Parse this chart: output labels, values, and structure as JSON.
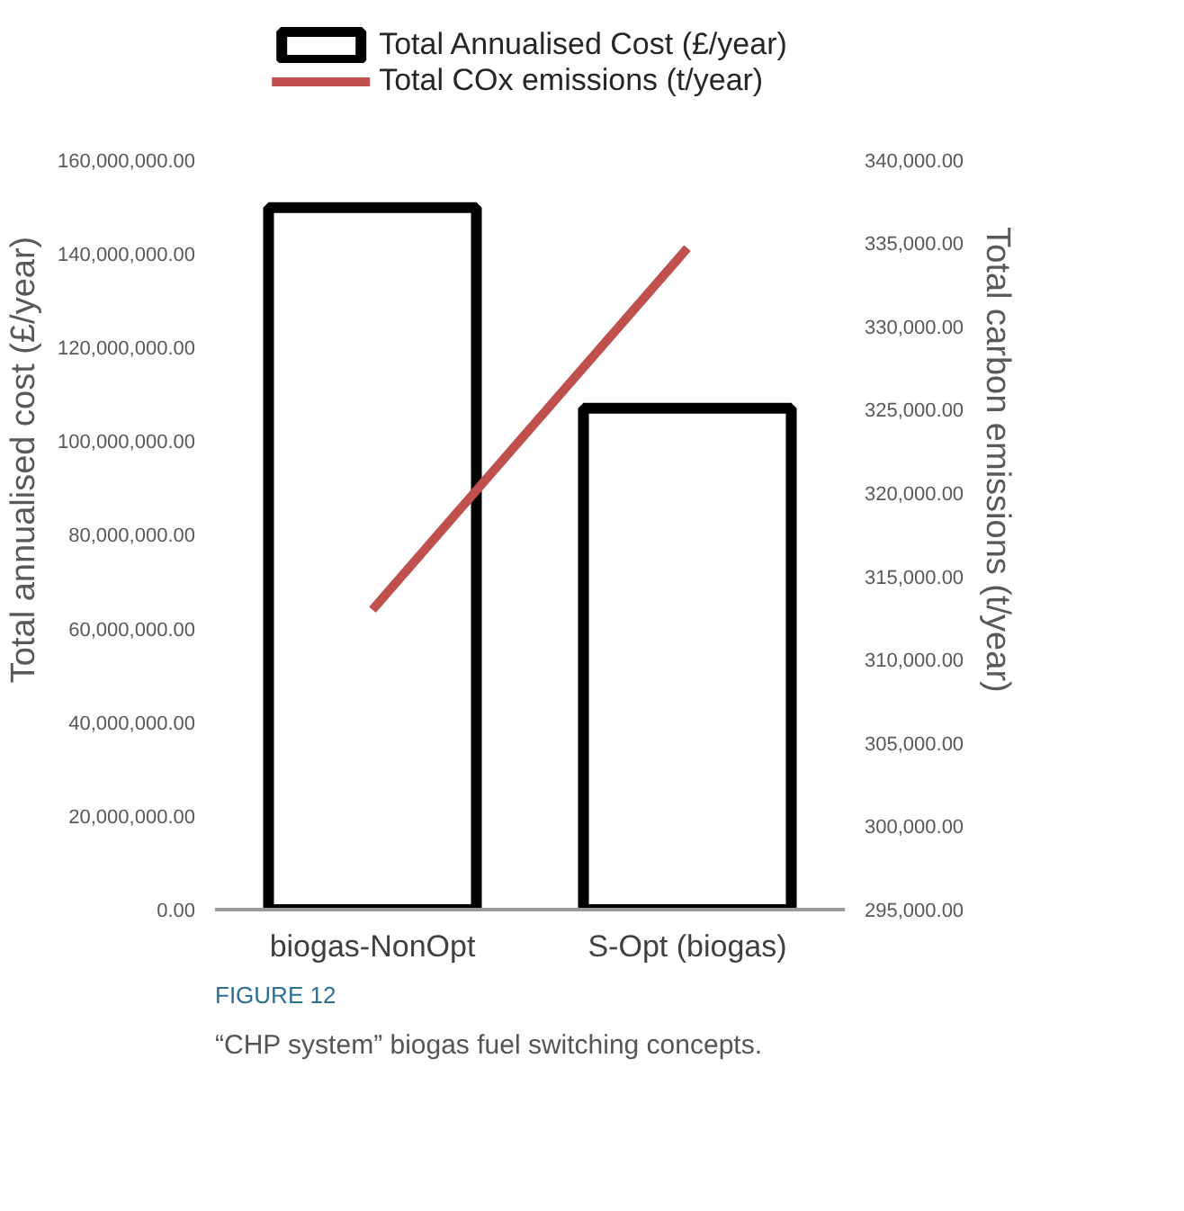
{
  "chart_data": {
    "type": "bar",
    "categories": [
      "biogas-NonOpt",
      "S-Opt (biogas)"
    ],
    "ylabel": "Total annualised cost (£/year)",
    "y2label": "Total carbon emissions (t/year)",
    "ylim": [
      0,
      160000000
    ],
    "yticks": [
      {
        "value": 0,
        "label": "0.00"
      },
      {
        "value": 20000000,
        "label": "20,000,000.00"
      },
      {
        "value": 40000000,
        "label": "40,000,000.00"
      },
      {
        "value": 60000000,
        "label": "60,000,000.00"
      },
      {
        "value": 80000000,
        "label": "80,000,000.00"
      },
      {
        "value": 100000000,
        "label": "100,000,000.00"
      },
      {
        "value": 120000000,
        "label": "120,000,000.00"
      },
      {
        "value": 140000000,
        "label": "140,000,000.00"
      },
      {
        "value": 160000000,
        "label": "160,000,000.00"
      }
    ],
    "y2lim": [
      295000,
      340000
    ],
    "y2ticks": [
      {
        "value": 295000,
        "label": "295,000.00"
      },
      {
        "value": 300000,
        "label": "300,000.00"
      },
      {
        "value": 305000,
        "label": "305,000.00"
      },
      {
        "value": 310000,
        "label": "310,000.00"
      },
      {
        "value": 315000,
        "label": "315,000.00"
      },
      {
        "value": 320000,
        "label": "320,000.00"
      },
      {
        "value": 325000,
        "label": "325,000.00"
      },
      {
        "value": 330000,
        "label": "330,000.00"
      },
      {
        "value": 335000,
        "label": "335,000.00"
      },
      {
        "value": 340000,
        "label": "340,000.00"
      }
    ],
    "series": [
      {
        "name": "Total Annualised Cost (£/year)",
        "color": "#000000",
        "values": [
          149800000,
          107000000
        ]
      },
      {
        "name": "Total COx emissions (t/year)",
        "type": "line",
        "color": "#c0504d",
        "axis": "y2",
        "values": [
          313000,
          334700
        ]
      }
    ],
    "legend": "top",
    "grid": false,
    "annotations": [
      "FIGURE 12",
      "“CHP system” biogas fuel switching concepts."
    ]
  }
}
